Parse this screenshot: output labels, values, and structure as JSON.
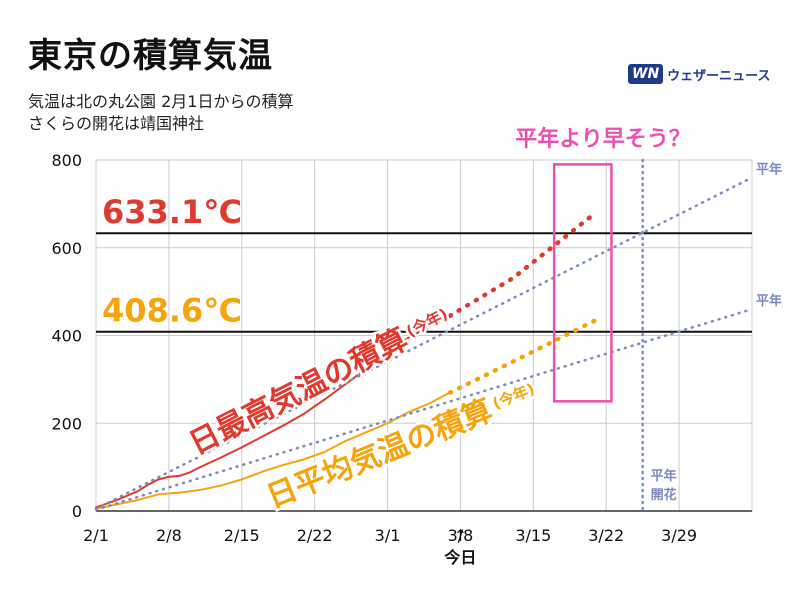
{
  "title": "東京の積算気温",
  "subtitle_lines": [
    "気温は北の丸公園 2月1日からの積算",
    "さくらの開花は靖国神社"
  ],
  "brand": {
    "logo": "WN",
    "name": "ウェザーニュース"
  },
  "colors": {
    "max": "#e0392d",
    "avg": "#f5a40e",
    "normal": "#7c8bbf",
    "highlight": "#ec4fae",
    "grid": "#cccccc"
  },
  "chart_data": {
    "type": "line",
    "x_axis": {
      "ticks": [
        "2/1",
        "2/8",
        "2/15",
        "2/22",
        "3/1",
        "3/8",
        "3/15",
        "3/22",
        "3/29"
      ],
      "range_days": [
        0,
        63
      ],
      "today_marker": "↑",
      "today_label": "今日",
      "today_day": 35
    },
    "y_axis": {
      "range": [
        0,
        800
      ],
      "ticks": [
        "0",
        "200",
        "400",
        "600",
        "800"
      ],
      "grid": true
    },
    "thresholds": [
      {
        "label": "633.1℃",
        "value": 633.1,
        "color": "#e0392d"
      },
      {
        "label": "408.6℃",
        "value": 408.6,
        "color": "#f5a40e"
      }
    ],
    "series": [
      {
        "label": "日最高気温の積算",
        "label_suffix": "(今年)",
        "color": "#e0392d",
        "style": "solid",
        "x": [
          0,
          2,
          4,
          5,
          6,
          7,
          8,
          9,
          10,
          12,
          14,
          16,
          18,
          20,
          22,
          24,
          26,
          28,
          30,
          32,
          34
        ],
        "y": [
          8,
          25,
          45,
          60,
          72,
          78,
          80,
          88,
          100,
          122,
          145,
          170,
          195,
          222,
          255,
          290,
          325,
          360,
          395,
          420,
          445
        ]
      },
      {
        "label": "",
        "color": "#e0392d",
        "style": "dotted",
        "x": [
          34,
          40,
          48
        ],
        "y": [
          445,
          530,
          680
        ]
      },
      {
        "label": "日平均気温の積算",
        "label_suffix": "(今年)",
        "color": "#f5a40e",
        "style": "solid",
        "x": [
          0,
          2,
          4,
          6,
          8,
          10,
          12,
          14,
          16,
          18,
          20,
          22,
          24,
          26,
          28,
          30,
          32,
          34
        ],
        "y": [
          5,
          15,
          25,
          38,
          42,
          48,
          58,
          72,
          90,
          105,
          118,
          135,
          160,
          180,
          200,
          225,
          245,
          270
        ]
      },
      {
        "label": "",
        "color": "#f5a40e",
        "style": "dotted",
        "x": [
          34,
          40,
          48
        ],
        "y": [
          270,
          340,
          435
        ]
      },
      {
        "label": "平年",
        "color": "#7c8bbf",
        "style": "dotted",
        "x": [
          0,
          63
        ],
        "y": [
          5,
          760
        ]
      },
      {
        "label": "平年",
        "color": "#7c8bbf",
        "style": "dotted",
        "x": [
          0,
          63
        ],
        "y": [
          3,
          460
        ]
      }
    ],
    "normal_bloom": {
      "label_lines": [
        "平年",
        "開花"
      ],
      "day": 52.5
    },
    "highlight": {
      "label": "平年より早そう？",
      "x_range": [
        44,
        49.5
      ],
      "y_range": [
        250,
        790
      ]
    }
  }
}
